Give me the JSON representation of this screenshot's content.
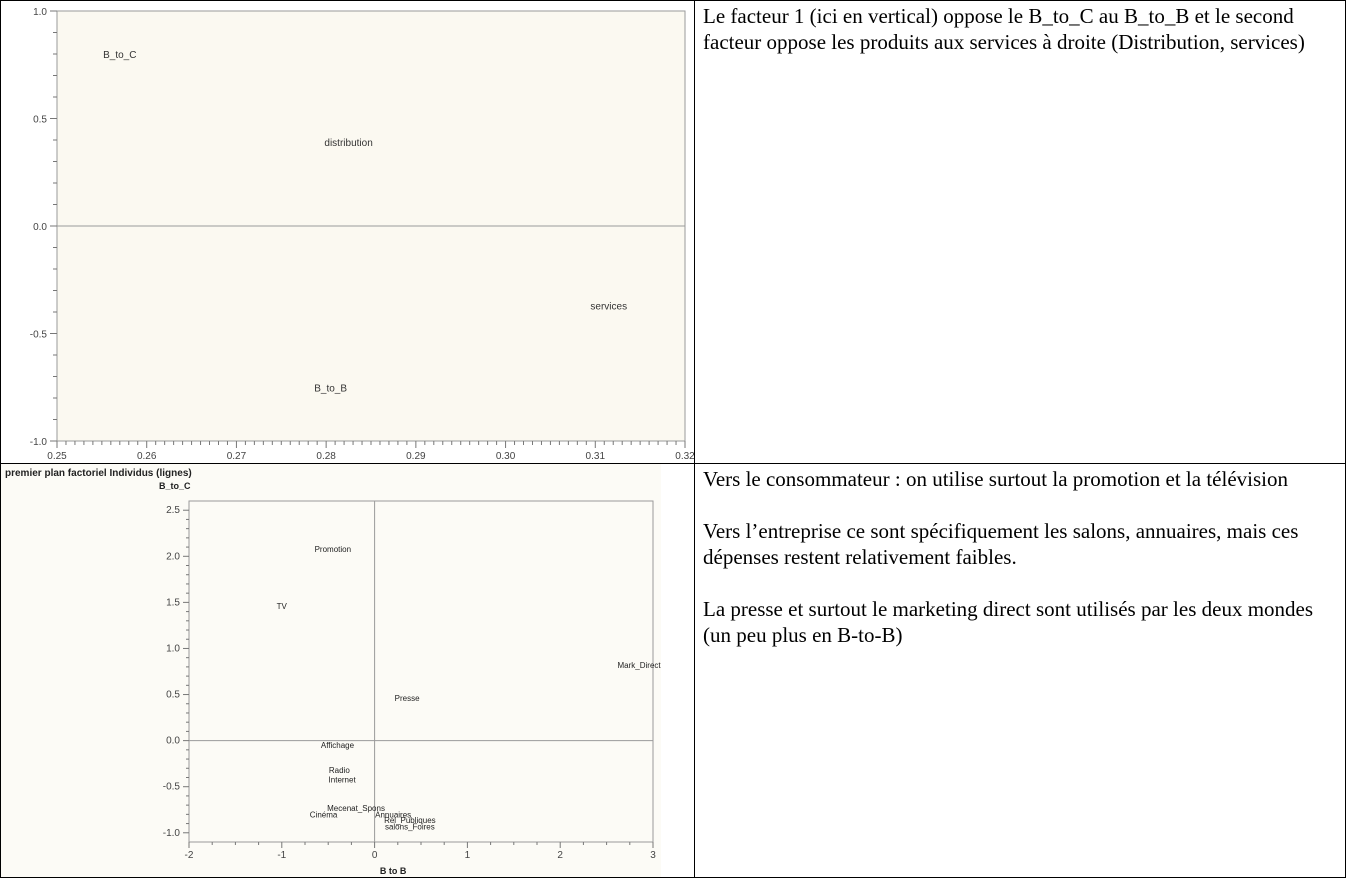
{
  "chart_data": [
    {
      "type": "scatter",
      "title": "",
      "xlabel": "",
      "ylabel": "",
      "xlim": [
        0.25,
        0.32
      ],
      "ylim": [
        -1.0,
        1.0
      ],
      "xticks": [
        "0.25",
        "0.26",
        "0.27",
        "0.28",
        "0.29",
        "0.30",
        "0.31",
        "0.32"
      ],
      "yticks": [
        "1.0",
        "0.5",
        "0.0",
        "-0.5",
        "-1.0"
      ],
      "points": [
        {
          "label": "B_to_C",
          "x": 0.257,
          "y": 0.8
        },
        {
          "label": "distribution",
          "x": 0.2825,
          "y": 0.39
        },
        {
          "label": "services",
          "x": 0.3115,
          "y": -0.37
        },
        {
          "label": "B_to_B",
          "x": 0.2805,
          "y": -0.75
        }
      ],
      "reference_line_y": 0.0,
      "background": "#fbf9f1"
    },
    {
      "type": "scatter",
      "title": "premier plan factoriel Individus (lignes)",
      "xlabel": "B to B",
      "ylabel": "B_to_C",
      "xlim": [
        -2,
        3
      ],
      "ylim": [
        -1.1,
        2.6
      ],
      "xticks": [
        "-2",
        "-1",
        "0",
        "1",
        "2",
        "3"
      ],
      "yticks": [
        "2.5",
        "2.0",
        "1.5",
        "1.0",
        "0.5",
        "0.0",
        "-0.5",
        "-1.0"
      ],
      "points": [
        {
          "label": "Promotion",
          "x": -0.45,
          "y": 2.08
        },
        {
          "label": "TV",
          "x": -1.0,
          "y": 1.46
        },
        {
          "label": "Mark_Direct",
          "x": 2.85,
          "y": 0.82
        },
        {
          "label": "Presse",
          "x": 0.35,
          "y": 0.46
        },
        {
          "label": "Affichage",
          "x": -0.4,
          "y": -0.05
        },
        {
          "label": "Radio",
          "x": -0.38,
          "y": -0.32
        },
        {
          "label": "Internet",
          "x": -0.35,
          "y": -0.42
        },
        {
          "label": "Mecenat_Spons",
          "x": -0.2,
          "y": -0.73
        },
        {
          "label": "Cinéma",
          "x": -0.55,
          "y": -0.8
        },
        {
          "label": "Annuaires",
          "x": 0.2,
          "y": -0.8
        },
        {
          "label": "Rel_Publiques",
          "x": 0.38,
          "y": -0.86
        },
        {
          "label": "salons_Foires",
          "x": 0.38,
          "y": -0.93
        }
      ],
      "reference_line_x": 0.0,
      "reference_line_y": 0.0,
      "background": "#fcfbf6"
    }
  ],
  "texts": {
    "desc1": "Le facteur 1 (ici en vertical) oppose le B_to_C au B_to_B et le second facteur  oppose les produits  aux services à droite (Distribution, services)",
    "desc2": [
      "Vers le consommateur : on utilise surtout la promotion et la télévision",
      "Vers l’entreprise ce sont spécifiquement les salons, annuaires, mais ces dépenses restent relativement faibles.",
      "La presse et surtout le marketing direct sont utilisés par les deux mondes (un peu plus en B-to-B)"
    ]
  }
}
